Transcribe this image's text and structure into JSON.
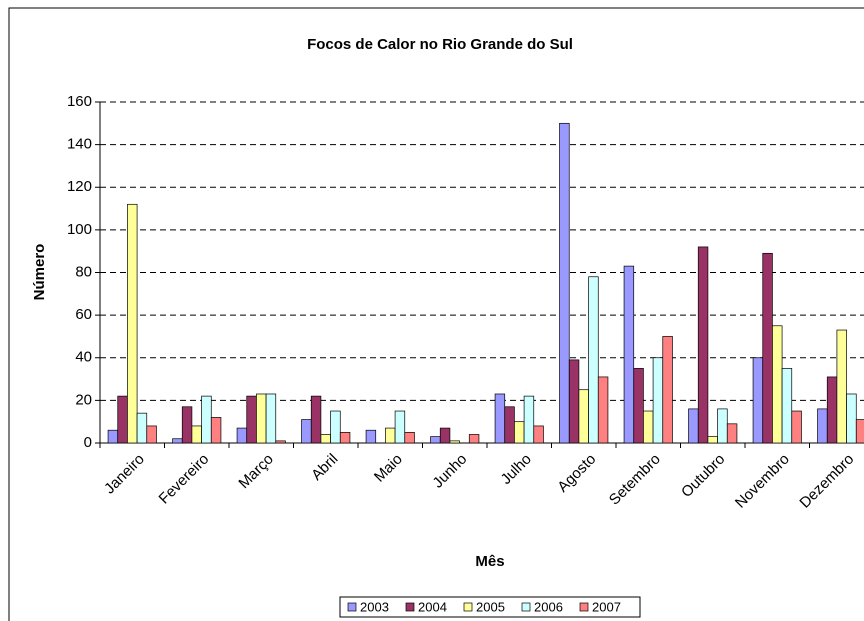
{
  "chart_data": {
    "type": "bar",
    "title": "Focos de Calor no Rio Grande do Sul",
    "x_label": "Mês",
    "y_label": "Número",
    "categories": [
      "Janeiro",
      "Fevereiro",
      "Março",
      "Abril",
      "Maio",
      "Junho",
      "Julho",
      "Agosto",
      "Setembro",
      "Outubro",
      "Novembro",
      "Dezembro"
    ],
    "series": [
      {
        "name": "2003",
        "color": "#9999ff",
        "values": [
          6,
          2,
          7,
          11,
          6,
          3,
          23,
          150,
          83,
          16,
          40,
          16
        ]
      },
      {
        "name": "2004",
        "color": "#993366",
        "values": [
          22,
          17,
          22,
          22,
          0,
          7,
          17,
          39,
          35,
          92,
          89,
          31
        ]
      },
      {
        "name": "2005",
        "color": "#ffff99",
        "values": [
          112,
          8,
          23,
          4,
          7,
          1,
          10,
          25,
          15,
          3,
          55,
          53
        ]
      },
      {
        "name": "2006",
        "color": "#ccffff",
        "values": [
          14,
          22,
          23,
          15,
          15,
          0,
          22,
          78,
          40,
          16,
          35,
          23
        ]
      },
      {
        "name": "2007",
        "color": "#ff8080",
        "values": [
          8,
          12,
          1,
          5,
          5,
          4,
          8,
          31,
          50,
          9,
          15,
          11
        ]
      }
    ],
    "ylim": [
      0,
      160
    ],
    "yticks": [
      0,
      20,
      40,
      60,
      80,
      100,
      120,
      140,
      160
    ],
    "grid": true,
    "legend": "bottom"
  }
}
